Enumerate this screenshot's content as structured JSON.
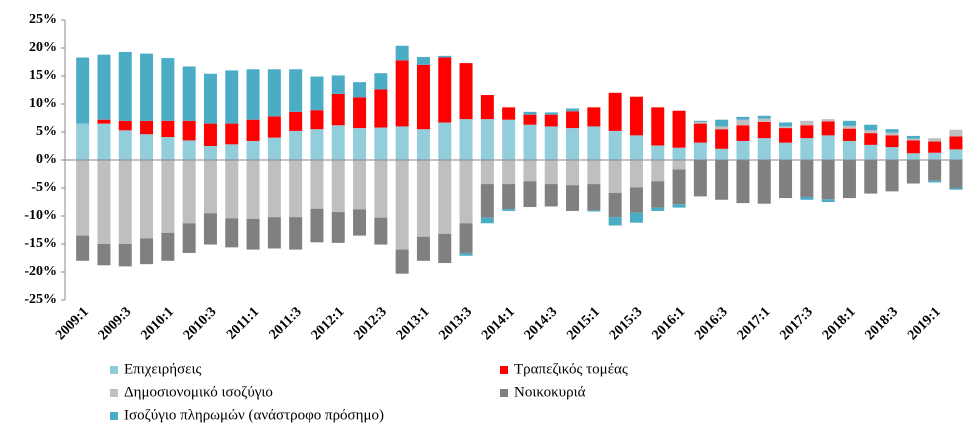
{
  "chart_data": {
    "type": "bar",
    "stacked": true,
    "categories": [
      "2009:1",
      null,
      "2009:3",
      null,
      "2010:1",
      null,
      "2010:3",
      null,
      "2011:1",
      null,
      "2011:3",
      null,
      "2012:1",
      null,
      "2012:3",
      null,
      "2013:1",
      null,
      "2013:3",
      null,
      "2014:1",
      null,
      "2014:3",
      null,
      "2015:1",
      null,
      "2015:3",
      null,
      "2016:1",
      null,
      "2016:3",
      null,
      "2017:1",
      null,
      "2017:3",
      null,
      "2018:1",
      null,
      "2018:3",
      null,
      "2019:1",
      null
    ],
    "series": [
      {
        "name": "Επιχειρήσεις",
        "color": "#92cddc",
        "values": [
          6.5,
          6.5,
          5.3,
          4.6,
          4.1,
          3.5,
          2.5,
          2.8,
          3.4,
          4,
          5.2,
          5.5,
          6.2,
          5.7,
          5.8,
          6,
          5.5,
          6.7,
          7.3,
          7.3,
          7.2,
          6.3,
          6,
          5.7,
          6,
          5.2,
          4.4,
          2.6,
          2.2,
          3.1,
          2,
          3.4,
          3.9,
          3.1,
          3.9,
          4.4,
          3.4,
          2.7,
          2.3,
          1.2,
          1.3,
          1.9
        ]
      },
      {
        "name": "Τραπεζικός τομέας",
        "color": "#ff0000",
        "values": [
          0,
          0.7,
          1.7,
          2.4,
          2.9,
          3.5,
          4,
          3.7,
          3.8,
          3.8,
          3.4,
          3.4,
          5.6,
          5.5,
          6.8,
          11.8,
          11.5,
          11.6,
          10,
          4.3,
          2.2,
          1.8,
          2.1,
          3,
          3.4,
          6.8,
          6.9,
          6.8,
          6.6,
          3.4,
          3.5,
          2.8,
          2.9,
          2.6,
          2.3,
          2.5,
          2.2,
          2.1,
          2.1,
          2.3,
          2,
          2.3
        ]
      },
      {
        "name": "Δημοσιονομικό ισοζύγιο",
        "color": "#bfbfbf",
        "values": [
          -13.5,
          -15,
          -15,
          -14,
          -13,
          -11.3,
          -9.5,
          -10.4,
          -10.5,
          -10.2,
          -10.2,
          -8.7,
          -9.3,
          -8.8,
          -10.3,
          -16,
          -13.7,
          -13.2,
          -11.3,
          -4.3,
          -4.3,
          -3.8,
          -4.3,
          -4.5,
          -4.3,
          -5.9,
          -4.9,
          -3.8,
          -1.7,
          0.3,
          0.5,
          1,
          0.6,
          0.3,
          0.8,
          0.4,
          0.5,
          0.5,
          0.5,
          0.3,
          0.6,
          1.2
        ]
      },
      {
        "name": "Νοικοκυριά",
        "color": "#808080",
        "values": [
          -4.5,
          -3.8,
          -4,
          -4.6,
          -5,
          -5.3,
          -5.6,
          -5.2,
          -5.5,
          -5.6,
          -5.8,
          -6,
          -5.5,
          -4.7,
          -4.8,
          -4.3,
          -4.3,
          -5.2,
          -5.3,
          -6,
          -4.5,
          -4.6,
          -4,
          -4.6,
          -4.7,
          -4.3,
          -4.5,
          -4.7,
          -6.2,
          -6.5,
          -7.1,
          -7.7,
          -7.8,
          -6.8,
          -6.6,
          -7,
          -6.8,
          -6,
          -5.6,
          -4.2,
          -3.7,
          -5
        ]
      },
      {
        "name": "Ισοζύγιο πληρωμών (ανάστροφο πρόσημο)",
        "color": "#4bacc6",
        "values": [
          11.8,
          11.6,
          12.3,
          12,
          11.2,
          9.7,
          8.9,
          9.5,
          9,
          8.4,
          7.6,
          6,
          3.3,
          2.7,
          2.9,
          2.6,
          1.4,
          0.3,
          -0.5,
          -1,
          -0.3,
          0.5,
          0.4,
          0.5,
          -0.2,
          -1.5,
          -1.8,
          -0.6,
          -0.6,
          0.2,
          1.2,
          0.5,
          0.5,
          0.7,
          -0.5,
          -0.5,
          0.9,
          1,
          0.6,
          0.5,
          -0.3,
          -0.3
        ]
      }
    ],
    "ylim": [
      -25,
      25
    ],
    "yticks": [
      {
        "value": 25,
        "label": "25%"
      },
      {
        "value": 20,
        "label": "20%"
      },
      {
        "value": 15,
        "label": "15%"
      },
      {
        "value": 10,
        "label": "10%"
      },
      {
        "value": 5,
        "label": "5%"
      },
      {
        "value": 0,
        "label": "0%"
      },
      {
        "value": -5,
        "label": "-5%"
      },
      {
        "value": -10,
        "label": "-10%"
      },
      {
        "value": -15,
        "label": "-15%"
      },
      {
        "value": -20,
        "label": "-20%"
      },
      {
        "value": -25,
        "label": "-25%"
      }
    ],
    "grid": false,
    "legend": "bottom"
  }
}
